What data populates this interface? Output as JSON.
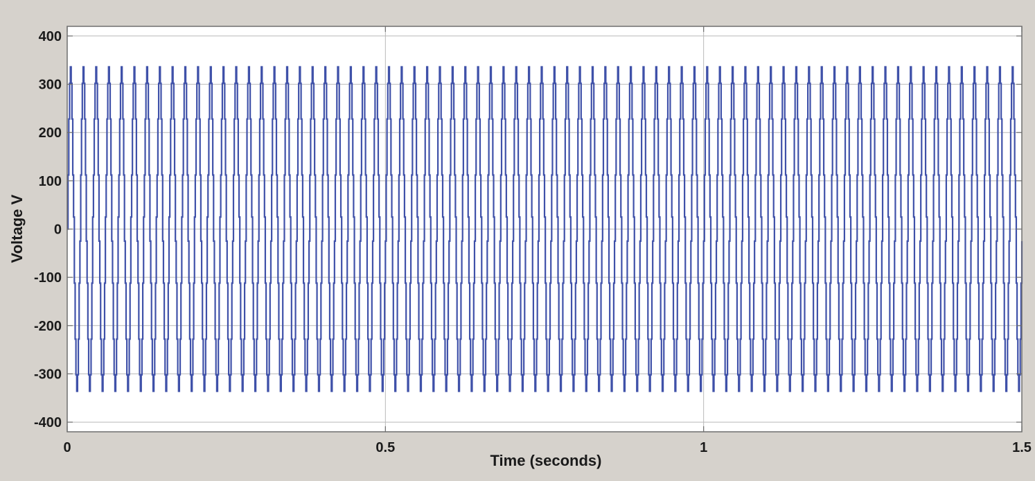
{
  "chart_data": {
    "type": "line",
    "title": "",
    "xlabel": "Time (seconds)",
    "ylabel": "Voltage V",
    "xlim": [
      0,
      1.5
    ],
    "ylim": [
      -420,
      420
    ],
    "xticks": [
      0,
      0.5,
      1,
      1.5
    ],
    "xtick_labels": [
      "0",
      "0.5",
      "1",
      "1.5"
    ],
    "yticks": [
      -400,
      -300,
      -200,
      -100,
      0,
      100,
      200,
      300,
      400
    ],
    "ytick_labels": [
      "-400",
      "-300",
      "-200",
      "-100",
      "0",
      "100",
      "200",
      "300",
      "400"
    ],
    "grid": true,
    "legend": "none",
    "series": [
      {
        "kind": "staircase-sine",
        "frequency_hz": 50,
        "amplitude": 336,
        "levels": [
          336,
          302,
          265,
          228,
          190,
          152,
          112,
          70,
          25
        ],
        "sample_period_s": 0.00125,
        "t_start": 0,
        "t_end": 1.5,
        "color": "#3f51a9"
      }
    ],
    "colors": {
      "background": "#d6d2cc",
      "plot_area": "#ffffff",
      "grid": "#b9b9b9",
      "axis": "#6e6e6e",
      "line": "#3f51a9"
    }
  }
}
